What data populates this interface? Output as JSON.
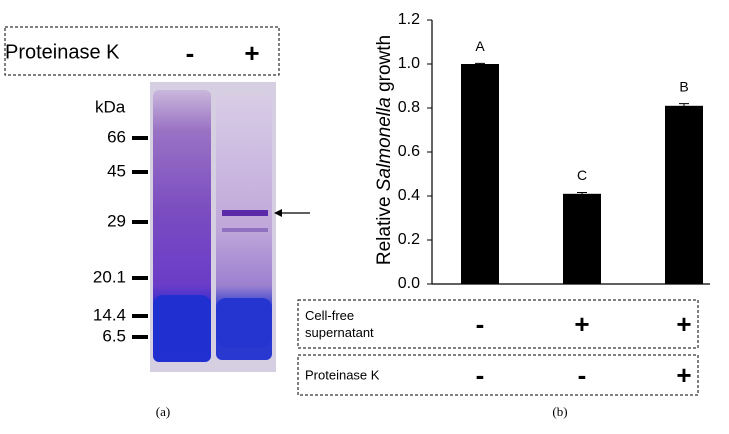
{
  "gel": {
    "header_label": "Proteinase K",
    "lanes": [
      "-",
      "+"
    ],
    "unit": "kDa",
    "markers": [
      "66",
      "45",
      "29",
      "20.1",
      "14.4",
      "6.5"
    ],
    "panel_label": "(a)"
  },
  "chart_data": {
    "type": "bar",
    "ylabel_parts": [
      "Relative",
      "Salmonella",
      "growth"
    ],
    "categories": [
      null,
      null,
      null
    ],
    "series": [
      {
        "name": null,
        "color": "#000000",
        "values": [
          1.0,
          0.41,
          0.81
        ],
        "errors": [
          0.003,
          0.006,
          0.01
        ]
      }
    ],
    "ylim": [
      0,
      1.2
    ],
    "yticks": [
      {
        "value": 0,
        "label": "0.0"
      },
      {
        "value": 0.2,
        "label": "0.2"
      },
      {
        "value": 0.4,
        "label": "0.4"
      },
      {
        "value": 0.6,
        "label": "0.6"
      },
      {
        "value": 0.8,
        "label": "0.8"
      },
      {
        "value": 1.0,
        "label": "1.0"
      },
      {
        "value": 1.2,
        "label": "1.2"
      }
    ],
    "annotations": [
      "A",
      "C",
      "B"
    ],
    "conditions": [
      {
        "label_lines": [
          "Cell-free",
          "supernatant"
        ],
        "signs": [
          "-",
          "+",
          "+"
        ]
      },
      {
        "label_lines": [
          "Proteinase K"
        ],
        "signs": [
          "-",
          "-",
          "+"
        ]
      }
    ],
    "panel_label": "(b)"
  }
}
